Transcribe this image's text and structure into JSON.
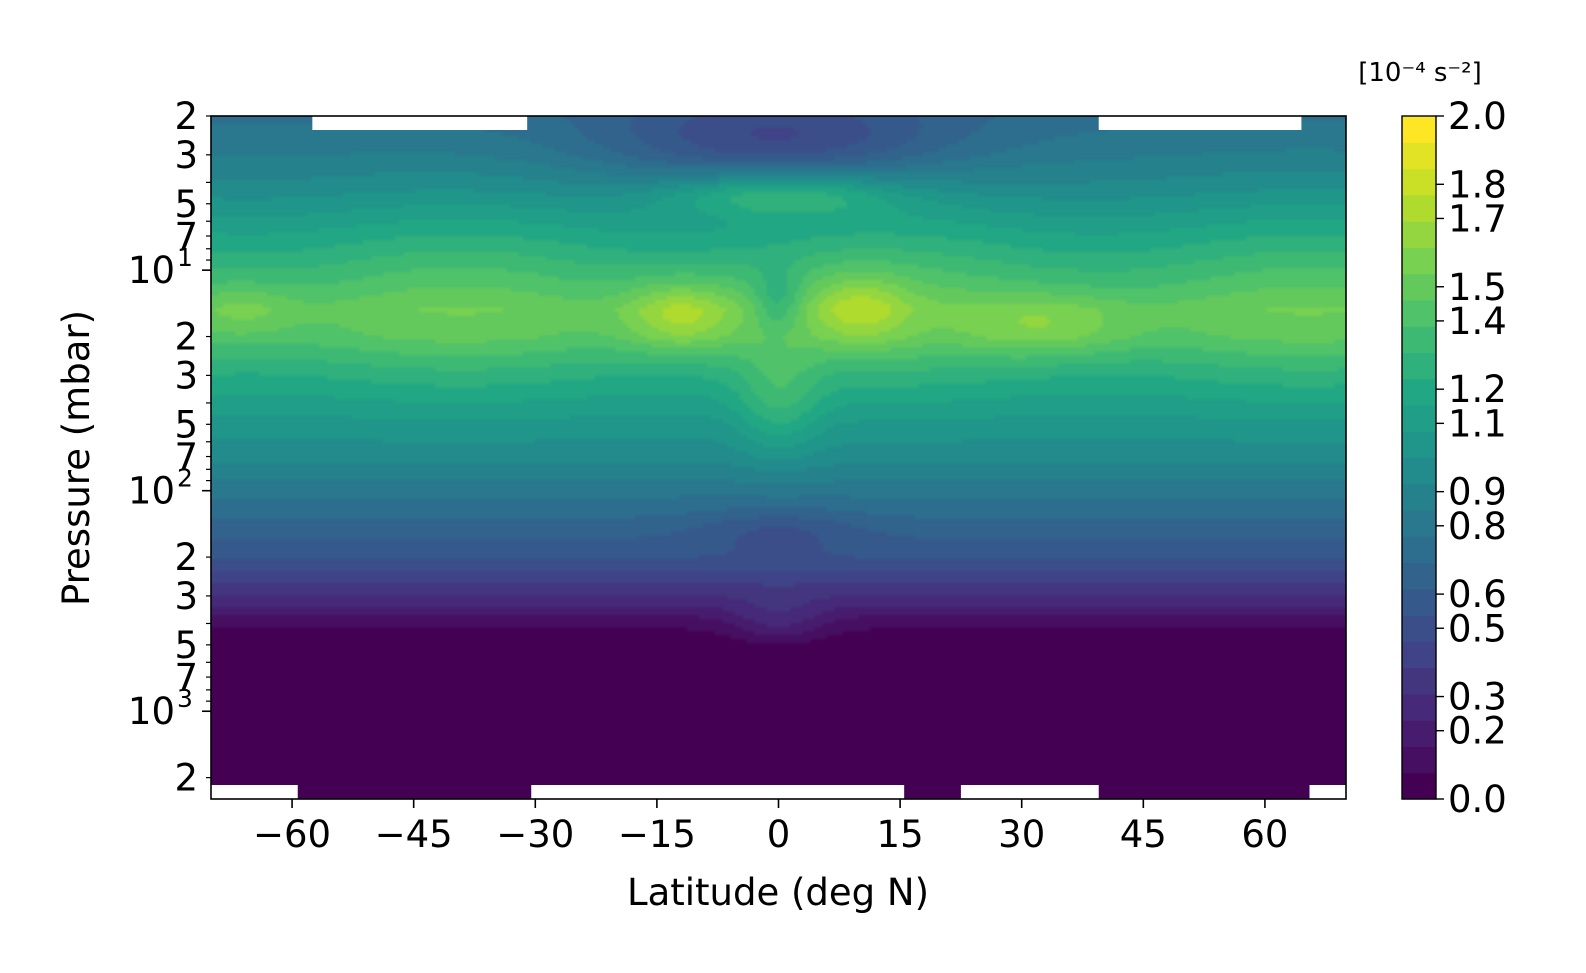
{
  "chart_data": {
    "type": "heatmap",
    "xlabel": "Latitude (deg N)",
    "ylabel": "Pressure (mbar)",
    "x_range": [
      -70,
      70
    ],
    "y_range": [
      2,
      2500
    ],
    "y_scale": "log",
    "x_ticks": [
      {
        "value": -60,
        "label": "−60"
      },
      {
        "value": -45,
        "label": "−45"
      },
      {
        "value": -30,
        "label": "−30"
      },
      {
        "value": -15,
        "label": "−15"
      },
      {
        "value": 0,
        "label": "0"
      },
      {
        "value": 15,
        "label": "15"
      },
      {
        "value": 30,
        "label": "30"
      },
      {
        "value": 45,
        "label": "45"
      },
      {
        "value": 60,
        "label": "60"
      }
    ],
    "y_major_ticks": [
      {
        "value": 10,
        "base": "10",
        "exp": "1"
      },
      {
        "value": 100,
        "base": "10",
        "exp": "2"
      },
      {
        "value": 1000,
        "base": "10",
        "exp": "3"
      }
    ],
    "y_minor_labels": [
      {
        "value": 2,
        "label": "2"
      },
      {
        "value": 3,
        "label": "3"
      },
      {
        "value": 5,
        "label": "5"
      },
      {
        "value": 7,
        "label": "7"
      },
      {
        "value": 20,
        "label": "2"
      },
      {
        "value": 30,
        "label": "3"
      },
      {
        "value": 50,
        "label": "5"
      },
      {
        "value": 70,
        "label": "7"
      },
      {
        "value": 200,
        "label": "2"
      },
      {
        "value": 300,
        "label": "3"
      },
      {
        "value": 500,
        "label": "5"
      },
      {
        "value": 700,
        "label": "7"
      },
      {
        "value": 2000,
        "label": "2"
      }
    ],
    "colorbar": {
      "unit_label": "[10⁻⁴ s⁻²]",
      "range": [
        0,
        2.0
      ],
      "levels": 26,
      "tick_labels": [
        {
          "value": 0.0,
          "label": "0.0"
        },
        {
          "value": 0.2,
          "label": "0.2"
        },
        {
          "value": 0.3,
          "label": "0.3"
        },
        {
          "value": 0.5,
          "label": "0.5"
        },
        {
          "value": 0.6,
          "label": "0.6"
        },
        {
          "value": 0.8,
          "label": "0.8"
        },
        {
          "value": 0.9,
          "label": "0.9"
        },
        {
          "value": 1.1,
          "label": "1.1"
        },
        {
          "value": 1.2,
          "label": "1.2"
        },
        {
          "value": 1.4,
          "label": "1.4"
        },
        {
          "value": 1.5,
          "label": "1.5"
        },
        {
          "value": 1.7,
          "label": "1.7"
        },
        {
          "value": 1.8,
          "label": "1.8"
        },
        {
          "value": 2.0,
          "label": "2.0"
        }
      ]
    },
    "profile_pressure": [
      2,
      3,
      4,
      5,
      7,
      10,
      15,
      20,
      30,
      50,
      70,
      100,
      150,
      200,
      300,
      400,
      500,
      1000,
      2500
    ],
    "profile_value": [
      0.75,
      0.85,
      0.95,
      1.05,
      1.2,
      1.35,
      1.5,
      1.45,
      1.25,
      1.05,
      0.95,
      0.8,
      0.65,
      0.55,
      0.3,
      0.1,
      0.0,
      0.0,
      0.0
    ],
    "anomalies": [
      {
        "lat": -12,
        "p": 16,
        "dlat": 7,
        "dlogp": 0.16,
        "amp": 0.28
      },
      {
        "lat": 10,
        "p": 15,
        "dlat": 6,
        "dlogp": 0.16,
        "amp": 0.22
      },
      {
        "lat": 33,
        "p": 18,
        "dlat": 10,
        "dlogp": 0.14,
        "amp": 0.18
      },
      {
        "lat": -66,
        "p": 15,
        "dlat": 6,
        "dlogp": 0.12,
        "amp": 0.12
      },
      {
        "lat": 0,
        "p": 14,
        "dlat": 3,
        "dlogp": 0.14,
        "amp": -0.2
      },
      {
        "lat": 0,
        "p": 2.6,
        "dlat": 22,
        "dlogp": 0.2,
        "amp": -0.35
      },
      {
        "lat": 0,
        "p": 4.5,
        "dlat": 14,
        "dlogp": 0.1,
        "amp": 0.35
      },
      {
        "lat": 0,
        "p": 40,
        "dlat": 5,
        "dlogp": 0.25,
        "amp": 0.2
      },
      {
        "lat": 0,
        "p": 400,
        "dlat": 6,
        "dlogp": 0.12,
        "amp": 0.15
      },
      {
        "lat": 0,
        "p": 150,
        "dlat": 10,
        "dlogp": 0.1,
        "amp": -0.12
      }
    ],
    "missing_regions": [
      {
        "lat_min": -57.5,
        "lat_max": -31,
        "edge": "top"
      },
      {
        "lat_min": 39.5,
        "lat_max": 64.5,
        "edge": "top"
      },
      {
        "lat_min": -70,
        "lat_max": -59.3,
        "edge": "bottom"
      },
      {
        "lat_min": -30.5,
        "lat_max": 15.5,
        "edge": "bottom"
      },
      {
        "lat_min": 22.5,
        "lat_max": 39.5,
        "edge": "bottom"
      },
      {
        "lat_min": 65.5,
        "lat_max": 70,
        "edge": "bottom"
      }
    ],
    "grid": false,
    "legend": "colorbar-right"
  }
}
